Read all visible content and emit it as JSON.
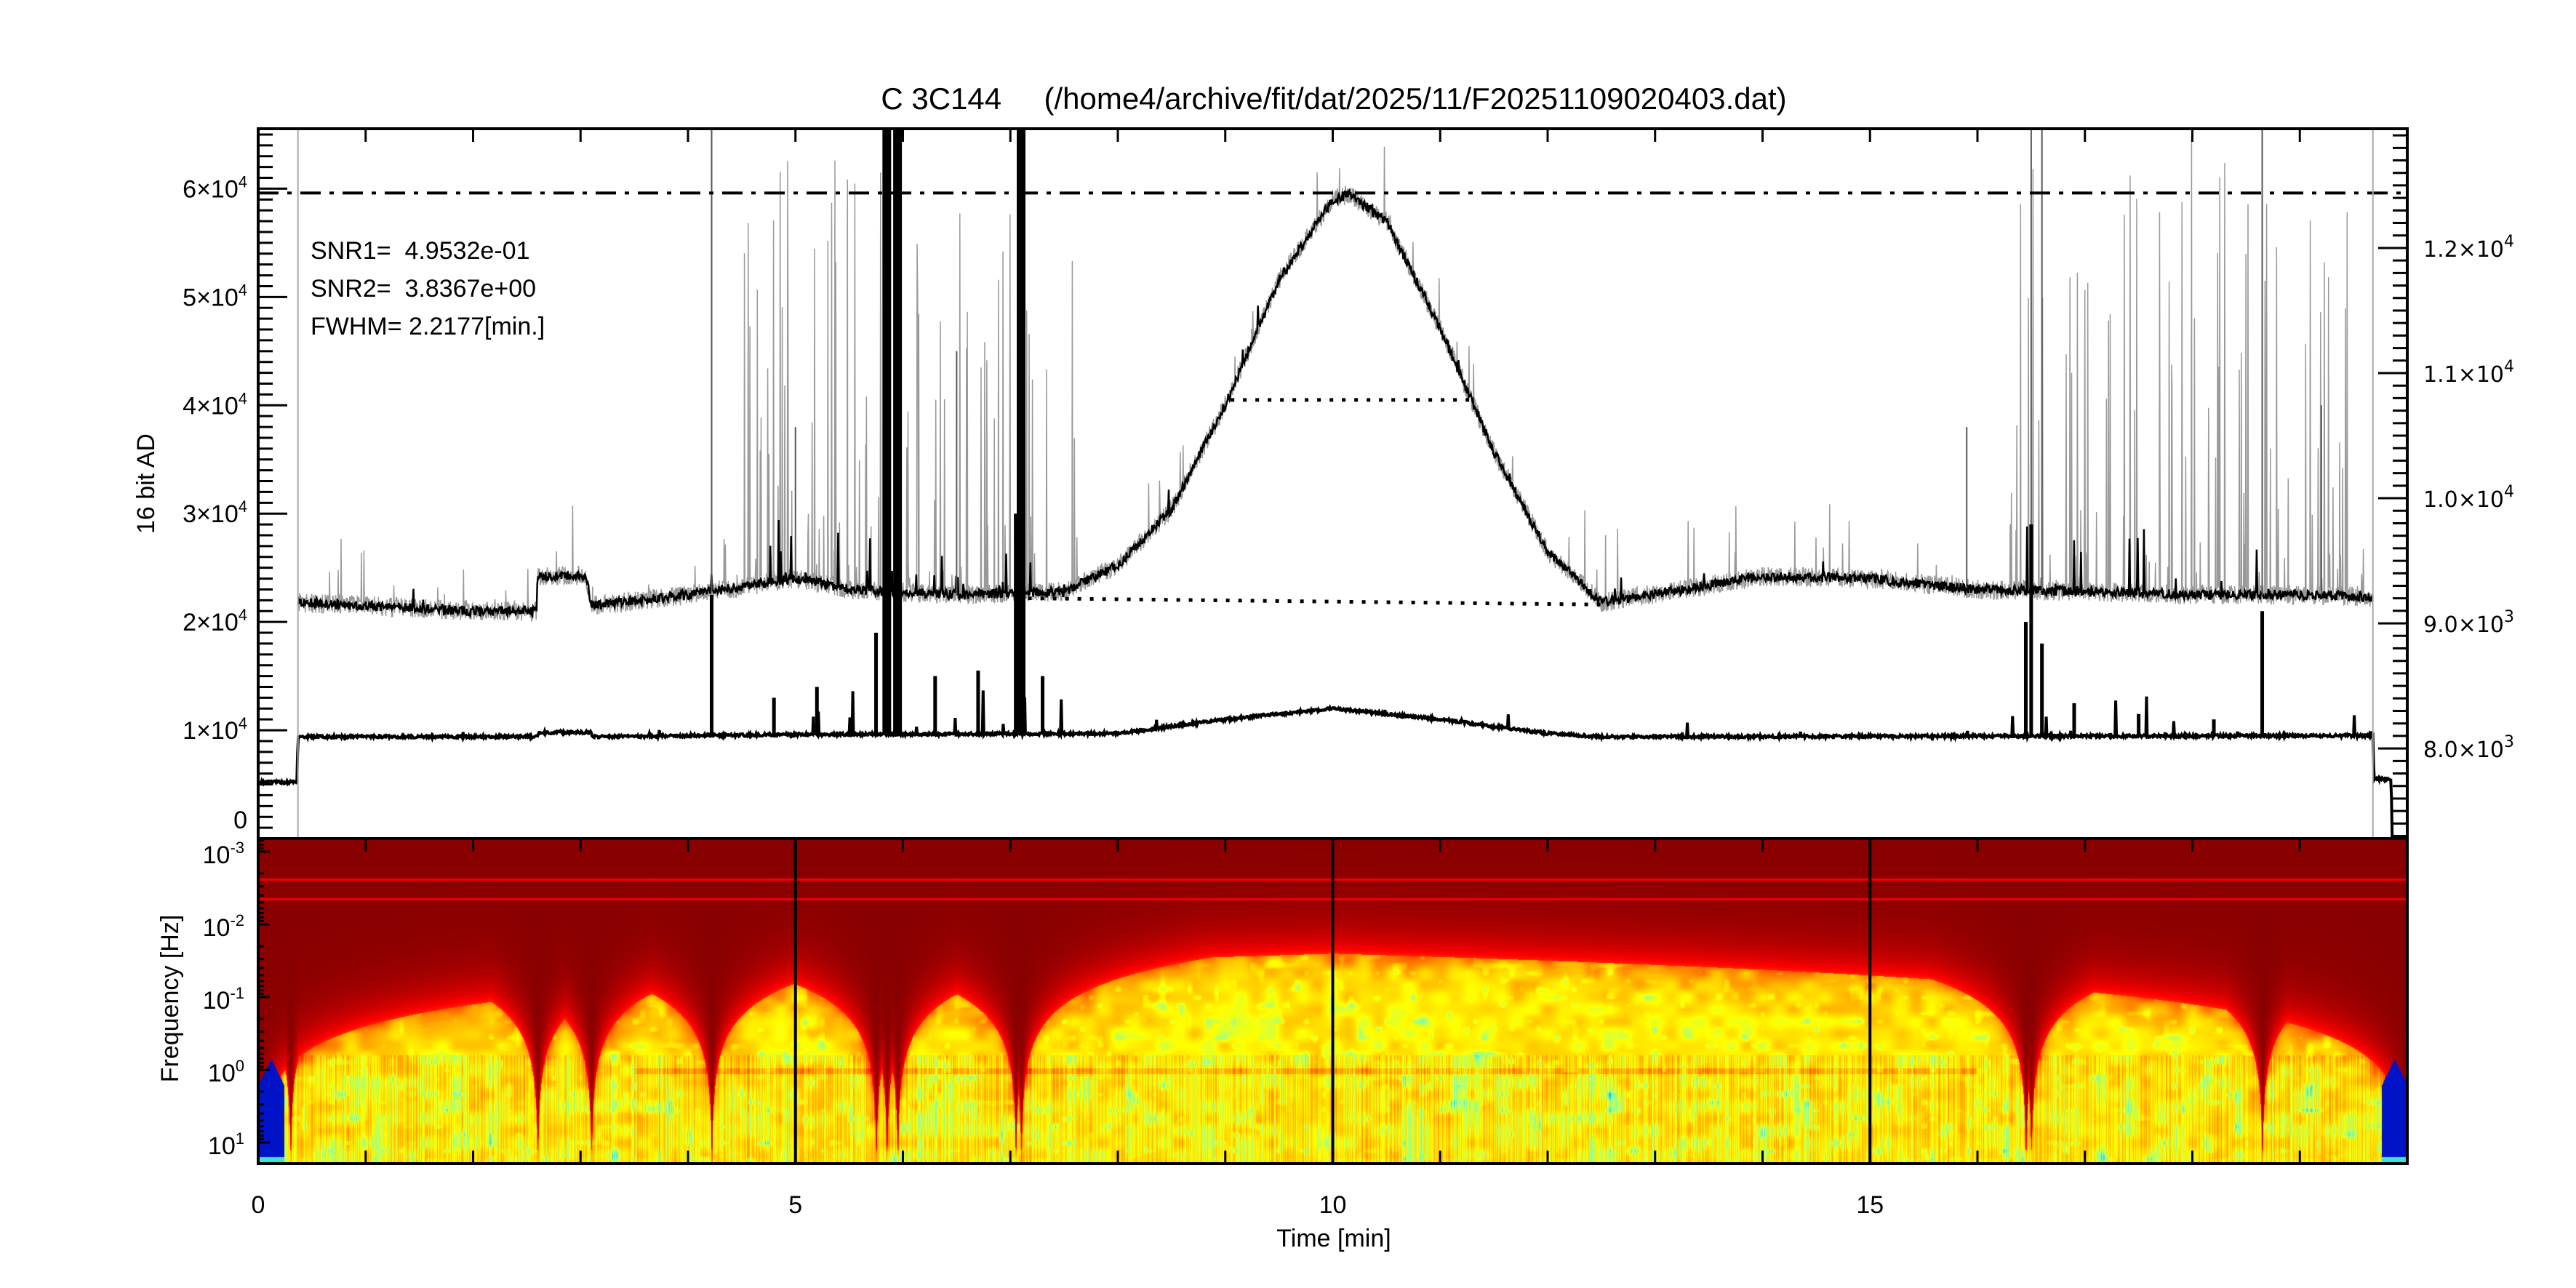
{
  "chart_data": [
    {
      "type": "line",
      "title": "C 3C144     (/home4/archive/fit/dat/2025/11/F20251109020403.dat)",
      "ylabel": "16 bit AD",
      "xlim": [
        0,
        20
      ],
      "ylim_left": [
        0,
        65535
      ],
      "ylim_right": [
        7280,
        12953
      ],
      "grid": false,
      "left_ticks": [
        {
          "value": 0,
          "base": "0",
          "exp": ""
        },
        {
          "value": 10000,
          "base": "1×10",
          "exp": "4"
        },
        {
          "value": 20000,
          "base": "2×10",
          "exp": "4"
        },
        {
          "value": 30000,
          "base": "3×10",
          "exp": "4"
        },
        {
          "value": 40000,
          "base": "4×10",
          "exp": "4"
        },
        {
          "value": 50000,
          "base": "5×10",
          "exp": "4"
        },
        {
          "value": 60000,
          "base": "6×10",
          "exp": "4"
        }
      ],
      "right_ticks": [
        {
          "value": 8000,
          "base": "8.0×10",
          "exp": "3"
        },
        {
          "value": 9000,
          "base": "9.0×10",
          "exp": "3"
        },
        {
          "value": 10000,
          "base": "1.0×10",
          "exp": "4"
        },
        {
          "value": 11000,
          "base": "1.1×10",
          "exp": "4"
        },
        {
          "value": 12000,
          "base": "1.2×10",
          "exp": "4"
        }
      ],
      "annotations": {
        "snr1": "SNR1=  4.9532e-01",
        "snr2": "SNR2=  3.8367e+00",
        "fwhm": "FWHM= 2.2177[min.]"
      },
      "reference_lines": {
        "peak_level": 59600,
        "half_max": {
          "value": 40500,
          "x": [
            9.05,
            11.27
          ]
        },
        "baseline": {
          "x": [
            7.05,
            12.5
          ],
          "y": [
            22200,
            21600
          ]
        },
        "data_window": [
          0.37,
          19.68
        ]
      },
      "series": [
        {
          "color": "#999999",
          "axis": "left",
          "knots": [
            [
              0.37,
              21800
            ],
            [
              1,
              21500
            ],
            [
              2,
              21000
            ],
            [
              2.59,
              21000
            ],
            [
              2.6,
              24200
            ],
            [
              3.05,
              24300
            ],
            [
              3.1,
              21500
            ],
            [
              4,
              22500
            ],
            [
              5,
              24000
            ],
            [
              5.5,
              23000
            ],
            [
              6.5,
              22500
            ],
            [
              7.5,
              22800
            ],
            [
              8,
              25200
            ],
            [
              8.5,
              30400
            ],
            [
              9,
              40000
            ],
            [
              9.5,
              51600
            ],
            [
              10,
              59000
            ],
            [
              10.15,
              59500
            ],
            [
              10.5,
              57000
            ],
            [
              11,
              47100
            ],
            [
              11.5,
              35700
            ],
            [
              12,
              26500
            ],
            [
              12.5,
              21800
            ],
            [
              13,
              22600
            ],
            [
              14,
              24200
            ],
            [
              15,
              24000
            ],
            [
              16,
              23000
            ],
            [
              17,
              22800
            ],
            [
              18,
              22500
            ],
            [
              19,
              22500
            ],
            [
              19.68,
              22300
            ]
          ],
          "burst_intervals": [
            [
              4.5,
              7.6
            ],
            [
              16.2,
              19.5
            ]
          ],
          "spikes": [
            [
              4.22,
              65535
            ],
            [
              5.85,
              65535
            ],
            [
              5.95,
              65535
            ],
            [
              7.1,
              65535
            ],
            [
              16.5,
              65535
            ],
            [
              16.6,
              65535
            ],
            [
              18.65,
              65535
            ],
            [
              5.0,
              38000
            ],
            [
              6.5,
              45000
            ],
            [
              15.9,
              38000
            ],
            [
              19.2,
              40000
            ]
          ]
        },
        {
          "color": "#000000",
          "axis": "left",
          "knots": [
            [
              0,
              5200
            ],
            [
              0.36,
              5200
            ],
            [
              0.37,
              9400
            ],
            [
              2.6,
              9400
            ],
            [
              2.61,
              9800
            ],
            [
              3.1,
              9800
            ],
            [
              3.11,
              9400
            ],
            [
              5,
              9600
            ],
            [
              8,
              9700
            ],
            [
              9,
              11000
            ],
            [
              10,
              12000
            ],
            [
              11,
              11000
            ],
            [
              12,
              9700
            ],
            [
              12.5,
              9400
            ],
            [
              19.68,
              9500
            ],
            [
              19.69,
              5500
            ],
            [
              19.85,
              5500
            ],
            [
              19.86,
              0
            ],
            [
              20,
              0
            ]
          ],
          "burst_intervals": [
            [
              4.6,
              7.6
            ],
            [
              16.2,
              19.6
            ]
          ],
          "spikes": [
            [
              4.22,
              22500
            ],
            [
              4.8,
              13000
            ],
            [
              5.2,
              14000
            ],
            [
              5.75,
              19000
            ],
            [
              5.85,
              65535
            ],
            [
              5.95,
              65535
            ],
            [
              6.3,
              15000
            ],
            [
              6.7,
              15500
            ],
            [
              7.05,
              30000
            ],
            [
              7.1,
              65535
            ],
            [
              7.3,
              15000
            ],
            [
              16.45,
              20000
            ],
            [
              16.5,
              29000
            ],
            [
              16.6,
              18000
            ],
            [
              16.9,
              12500
            ],
            [
              17.5,
              11500
            ],
            [
              18.2,
              11000
            ],
            [
              18.65,
              21000
            ]
          ]
        }
      ]
    },
    {
      "type": "heatmap",
      "ylabel": "Frequency [Hz]",
      "xlabel": "Time [min]",
      "xlim": [
        0,
        20
      ],
      "ylim_log10": [
        -3.18,
        1.29
      ],
      "x_ticks": [
        {
          "value": 0,
          "label": "0"
        },
        {
          "value": 5,
          "label": "5"
        },
        {
          "value": 10,
          "label": "10"
        },
        {
          "value": 15,
          "label": "15"
        }
      ],
      "y_ticks": [
        {
          "value": -3,
          "base": "10",
          "exp": "-3"
        },
        {
          "value": -2,
          "base": "10",
          "exp": "-2"
        },
        {
          "value": -1,
          "base": "10",
          "exp": "-1"
        },
        {
          "value": 0,
          "base": "10",
          "exp": "0"
        },
        {
          "value": 1,
          "base": "10",
          "exp": "1"
        }
      ],
      "marker_lines": [
        5,
        10,
        15
      ],
      "colormap": [
        "#800000",
        "#ff0000",
        "#ff8000",
        "#ffd000",
        "#ffff00",
        "#80ffb0",
        "#00c0ff",
        "#0000c0"
      ]
    }
  ]
}
